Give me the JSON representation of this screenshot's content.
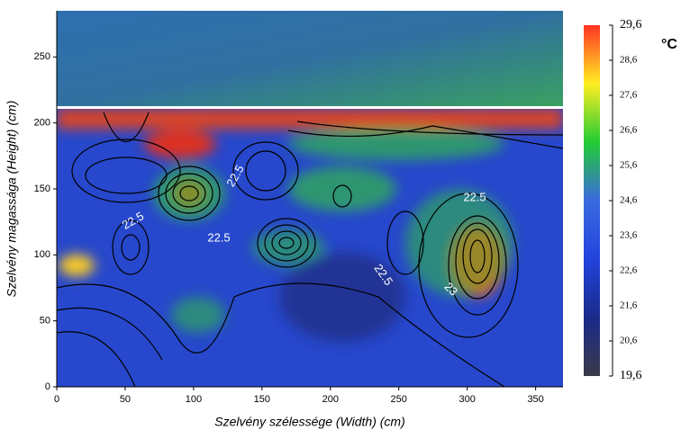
{
  "chart_data": {
    "type": "heatmap",
    "xlabel": "Szelvény szélessége (Width) (cm)",
    "ylabel": "Szelvény magassága (Height) (cm)",
    "xlim": [
      0,
      370
    ],
    "xticks": [
      0,
      50,
      100,
      150,
      200,
      250,
      300,
      350
    ],
    "ylim": [
      0,
      285
    ],
    "yticks": [
      0,
      50,
      100,
      150,
      200,
      250
    ],
    "annotations": [
      "22.5",
      "22.5",
      "22.5",
      "22.5",
      "22.5",
      "23"
    ],
    "colorbar": {
      "label": "°C",
      "range": [
        19.6,
        29.6
      ],
      "colors": [
        "#3a3a4a",
        "#1a2a8a",
        "#2244dd",
        "#3a6ae0",
        "#22cc33",
        "#ffee22",
        "#ff3322"
      ],
      "ticks": [
        {
          "value": 29.6,
          "label": "29,6"
        },
        {
          "value": 28.6,
          "label": "28,6"
        },
        {
          "value": 27.6,
          "label": "27,6"
        },
        {
          "value": 26.6,
          "label": "26,6"
        },
        {
          "value": 25.6,
          "label": "25,6"
        },
        {
          "value": 24.6,
          "label": "24,6"
        },
        {
          "value": 23.6,
          "label": "23,6"
        },
        {
          "value": 22.6,
          "label": "22,6"
        },
        {
          "value": 21.6,
          "label": "21,6"
        },
        {
          "value": 20.6,
          "label": "20,6"
        },
        {
          "value": 19.6,
          "label": "19,6"
        }
      ]
    }
  }
}
